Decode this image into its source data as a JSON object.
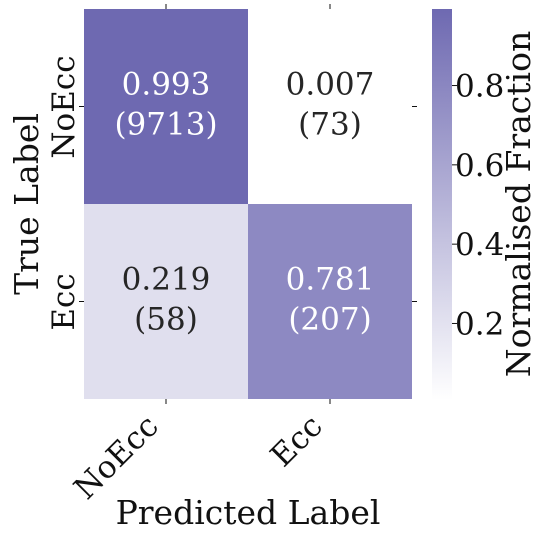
{
  "chart_data": {
    "type": "heatmap",
    "x_categories": [
      "NoEcc",
      "Ecc"
    ],
    "y_categories": [
      "NoEcc",
      "Ecc"
    ],
    "cells": [
      [
        {
          "fraction": 0.993,
          "value_label": "0.993",
          "count_label": "(9713)"
        },
        {
          "fraction": 0.007,
          "value_label": "0.007",
          "count_label": "(73)"
        }
      ],
      [
        {
          "fraction": 0.219,
          "value_label": "0.219",
          "count_label": "(58)"
        },
        {
          "fraction": 0.781,
          "value_label": "0.781",
          "count_label": "(207)"
        }
      ]
    ],
    "xlabel": "Predicted Label",
    "ylabel": "True Label",
    "colorbar": {
      "label": "Normalised Fraction",
      "ticks": [
        "0.2",
        "0.4",
        "0.6",
        "0.8"
      ],
      "tick_values": [
        0.2,
        0.4,
        0.6,
        0.8
      ],
      "range": [
        0.007,
        0.993
      ],
      "color_low": "#ffffff",
      "color_high": "#6e69b1"
    }
  }
}
